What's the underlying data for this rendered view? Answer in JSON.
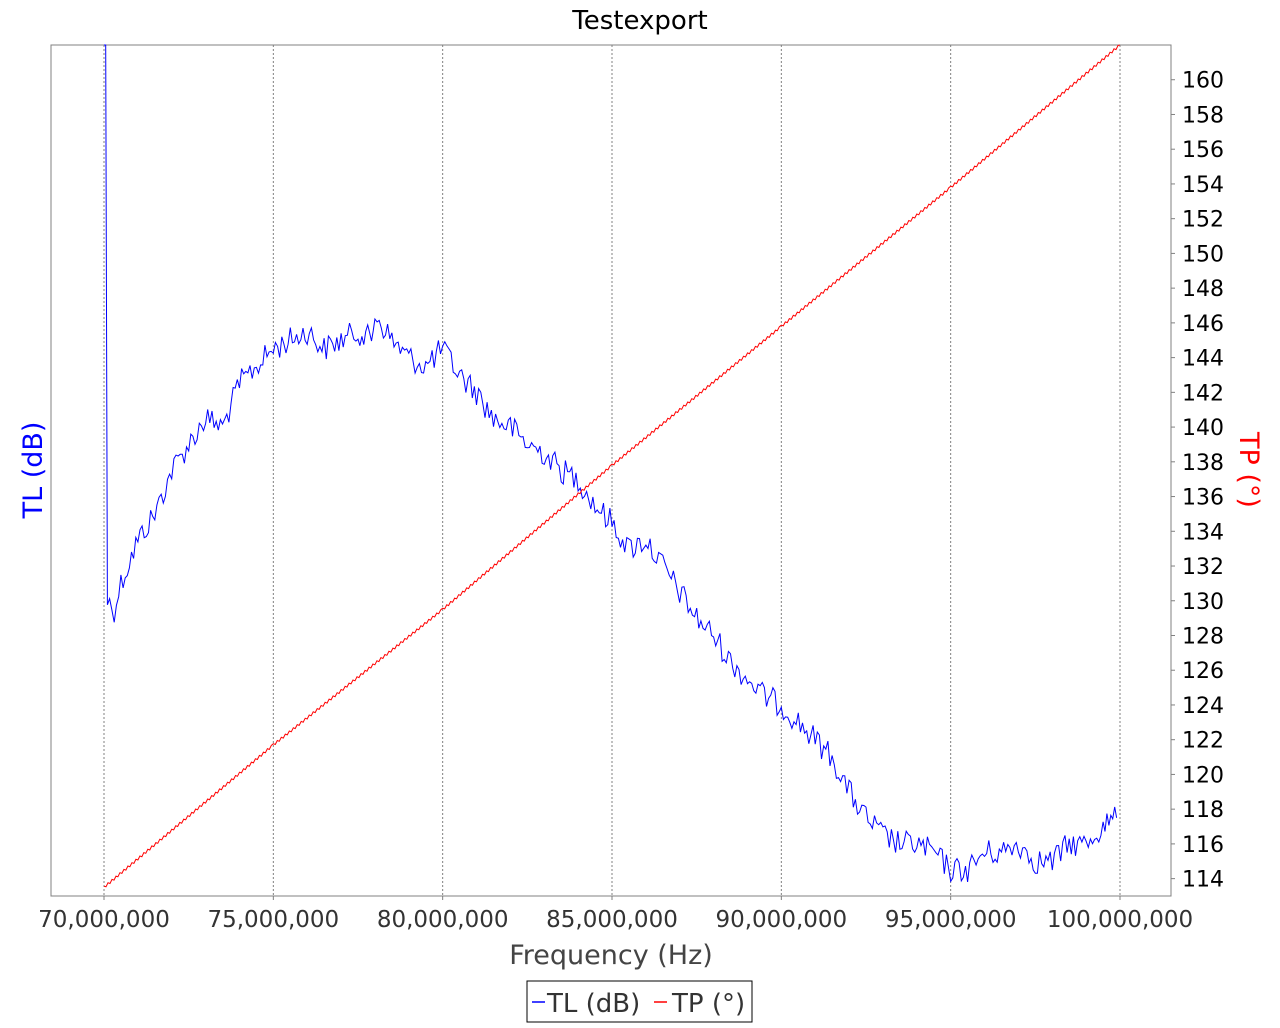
{
  "window": {
    "title": "Testexport"
  },
  "colors": {
    "background": "#ffffff",
    "plot_border": "#808080",
    "grid": "#808080",
    "tick_text": "#333333",
    "axis_label": "#444444",
    "tl_series": "#0000ff",
    "tp_series": "#ff0000"
  },
  "chart_data": {
    "type": "line",
    "title": "Testexport",
    "xlabel": "Frequency (Hz)",
    "y_left_label": "TL (dB)",
    "y_right_label": "TP (°)",
    "x_range": [
      70000000,
      100000000
    ],
    "x_ticks": [
      70000000,
      75000000,
      80000000,
      85000000,
      90000000,
      95000000,
      100000000
    ],
    "x_tick_labels": [
      "70,000,000",
      "75,000,000",
      "80,000,000",
      "85,000,000",
      "90,000,000",
      "95,000,000",
      "100,000,000"
    ],
    "y_right_range": [
      113,
      162
    ],
    "y_right_ticks": [
      114,
      116,
      118,
      120,
      122,
      124,
      126,
      128,
      130,
      132,
      134,
      136,
      138,
      140,
      142,
      144,
      146,
      148,
      150,
      152,
      154,
      156,
      158,
      160
    ],
    "y_right_tick_labels": [
      "114",
      "116",
      "118",
      "120",
      "122",
      "124",
      "126",
      "128",
      "130",
      "132",
      "134",
      "136",
      "138",
      "140",
      "142",
      "144",
      "146",
      "148",
      "150",
      "152",
      "154",
      "156",
      "158",
      "160"
    ],
    "y_left_ticks_visible": false,
    "grid": {
      "vertical": true,
      "horizontal": false,
      "style": "dotted"
    },
    "legend": {
      "placement": "bottom-center"
    },
    "series": [
      {
        "name": "TL (dB)",
        "axis": "left",
        "color": "#0000ff",
        "note_values_in_right_axis_scale_equivalent": false,
        "x": [
          70000000,
          70050000,
          70100000,
          70300000,
          70500000,
          71000000,
          71500000,
          72000000,
          72500000,
          73000000,
          73500000,
          74000000,
          74500000,
          75000000,
          75500000,
          76000000,
          76500000,
          77000000,
          77500000,
          77900000,
          78000000,
          78500000,
          79000000,
          79500000,
          80000000,
          80500000,
          81000000,
          81500000,
          82000000,
          82500000,
          83000000,
          83500000,
          84000000,
          84500000,
          85000000,
          85500000,
          86000000,
          86500000,
          87000000,
          87500000,
          88000000,
          88500000,
          89000000,
          89500000,
          90000000,
          90500000,
          91000000,
          91500000,
          92000000,
          92500000,
          93000000,
          93500000,
          94000000,
          94500000,
          95000000,
          95500000,
          96000000,
          96500000,
          97000000,
          97500000,
          98000000,
          98500000,
          99000000,
          99500000,
          99900000
        ],
        "y": [
          162,
          162,
          130,
          129.5,
          131,
          133.5,
          135,
          137.5,
          139,
          140.5,
          140,
          142.5,
          143.5,
          144.5,
          145,
          145.5,
          144.5,
          145,
          145.5,
          145,
          146.5,
          145,
          144,
          143.5,
          144.5,
          143,
          142,
          140.5,
          140,
          139,
          138.5,
          137.5,
          137,
          135.5,
          134.5,
          133,
          133.5,
          132,
          130.5,
          129,
          128,
          126.5,
          125.5,
          124.5,
          124,
          123,
          122,
          121,
          119,
          117.5,
          116.5,
          116,
          116,
          115.5,
          114.5,
          114.5,
          115.5,
          115.5,
          116,
          115,
          115,
          116,
          116,
          117,
          117.5
        ]
      },
      {
        "name": "TP (°)",
        "axis": "right",
        "color": "#ff0000",
        "x": [
          70000000,
          75000000,
          80000000,
          85000000,
          90000000,
          95000000,
          100000000
        ],
        "y": [
          113.5,
          121.7,
          129.5,
          137.8,
          145.8,
          153.8,
          162
        ]
      }
    ]
  }
}
